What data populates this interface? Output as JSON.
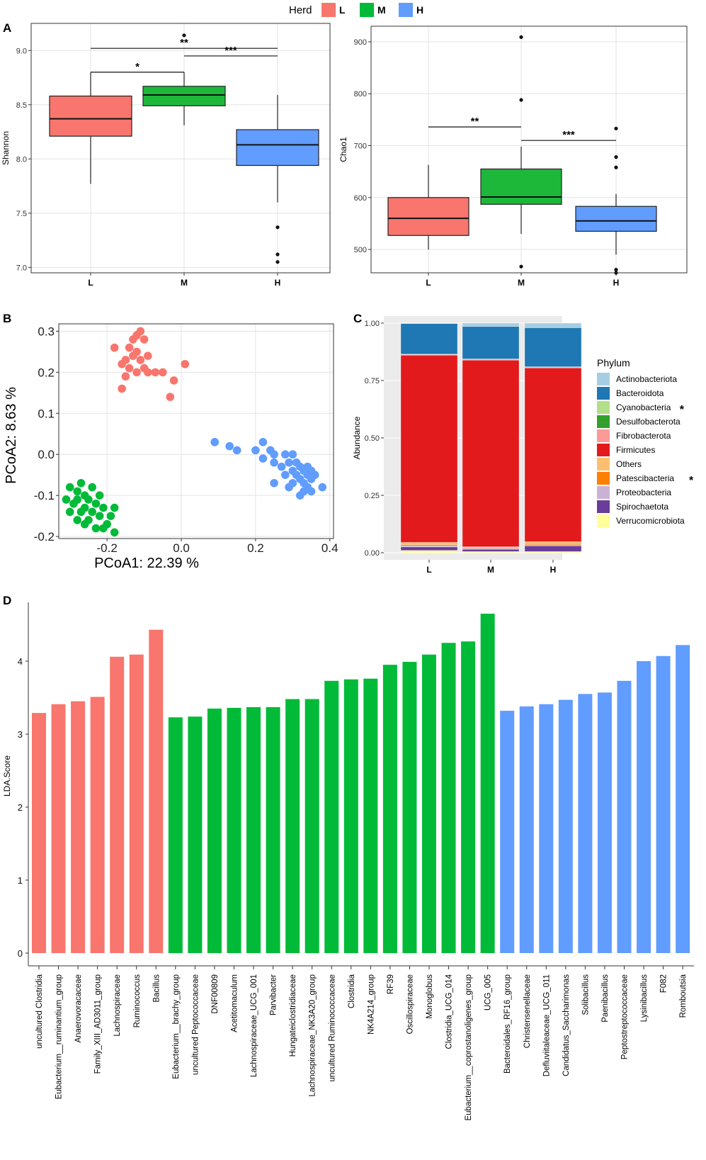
{
  "colors": {
    "L": "#F8766D",
    "M": "#00BA38",
    "H": "#619CFF",
    "box_L": "#F8766D",
    "box_M": "#1DB83A",
    "box_H": "#619CFF"
  },
  "legend": {
    "title": "Herd",
    "items": [
      "L",
      "M",
      "H"
    ]
  },
  "panel_labels": {
    "A": "A",
    "B": "B",
    "C": "C",
    "D": "D"
  },
  "chart_data": [
    {
      "id": "A_shannon",
      "type": "box",
      "ylabel": "Shannon",
      "ylim": [
        6.95,
        9.25
      ],
      "yticks": [
        {
          "v": 7.0,
          "label": "7.0"
        },
        {
          "v": 7.5,
          "label": "7.5"
        },
        {
          "v": 8.0,
          "label": "8.0"
        },
        {
          "v": 8.5,
          "label": "8.5"
        },
        {
          "v": 9.0,
          "label": "9.0"
        }
      ],
      "categories": [
        "L",
        "M",
        "H"
      ],
      "boxes": [
        {
          "group": "L",
          "lower": 7.77,
          "q1": 8.21,
          "median": 8.37,
          "q3": 8.58,
          "upper": 8.8,
          "outliers": []
        },
        {
          "group": "M",
          "lower": 8.31,
          "q1": 8.49,
          "median": 8.59,
          "q3": 8.67,
          "upper": 8.8,
          "outliers": [
            9.14
          ]
        },
        {
          "group": "H",
          "lower": 7.6,
          "q1": 7.94,
          "median": 8.13,
          "q3": 8.27,
          "upper": 8.59,
          "outliers": [
            7.37,
            7.12,
            7.05
          ]
        }
      ],
      "signif": [
        {
          "from": "L",
          "to": "M",
          "y": 8.8,
          "label": "*"
        },
        {
          "from": "L",
          "to": "H",
          "y": 9.02,
          "label": "**"
        },
        {
          "from": "M",
          "to": "H",
          "y": 8.95,
          "label": "***"
        }
      ]
    },
    {
      "id": "A_chao1",
      "type": "box",
      "ylabel": "Chao1",
      "ylim": [
        455,
        930
      ],
      "yticks": [
        {
          "v": 500,
          "label": "500"
        },
        {
          "v": 600,
          "label": "600"
        },
        {
          "v": 700,
          "label": "700"
        },
        {
          "v": 800,
          "label": "800"
        },
        {
          "v": 900,
          "label": "900"
        }
      ],
      "categories": [
        "L",
        "M",
        "H"
      ],
      "boxes": [
        {
          "group": "L",
          "lower": 500,
          "q1": 527,
          "median": 560,
          "q3": 600,
          "upper": 663,
          "outliers": []
        },
        {
          "group": "M",
          "lower": 530,
          "q1": 587,
          "median": 601,
          "q3": 655,
          "upper": 698,
          "outliers": [
            909,
            788,
            467
          ]
        },
        {
          "group": "H",
          "lower": 490,
          "q1": 535,
          "median": 555,
          "q3": 583,
          "upper": 607,
          "outliers": [
            733,
            678,
            658,
            461,
            455
          ]
        }
      ],
      "signif": [
        {
          "from": "L",
          "to": "M",
          "y": 736,
          "label": "**"
        },
        {
          "from": "M",
          "to": "H",
          "y": 710,
          "label": "***"
        }
      ]
    },
    {
      "id": "B_pcoa",
      "type": "scatter",
      "xlabel": "PCoA1:  22.39 %",
      "ylabel": "PCoA2:  8.63 %",
      "xlim": [
        -0.33,
        0.41
      ],
      "ylim": [
        -0.205,
        0.318
      ],
      "xticks": [
        {
          "v": -0.2,
          "label": "-0.2"
        },
        {
          "v": 0.0,
          "label": "0.0"
        },
        {
          "v": 0.2,
          "label": "0.2"
        },
        {
          "v": 0.4,
          "label": "0.4"
        }
      ],
      "yticks": [
        {
          "v": -0.2,
          "label": "-0.2"
        },
        {
          "v": -0.1,
          "label": "-0.1"
        },
        {
          "v": 0.0,
          "label": "0.0"
        },
        {
          "v": 0.1,
          "label": "0.1"
        },
        {
          "v": 0.2,
          "label": "0.2"
        },
        {
          "v": 0.3,
          "label": "0.3"
        }
      ],
      "series": [
        {
          "name": "L",
          "points": [
            [
              -0.12,
              0.29
            ],
            [
              -0.11,
              0.3
            ],
            [
              -0.13,
              0.28
            ],
            [
              -0.1,
              0.28
            ],
            [
              -0.18,
              0.26
            ],
            [
              -0.14,
              0.26
            ],
            [
              -0.12,
              0.25
            ],
            [
              -0.13,
              0.24
            ],
            [
              -0.09,
              0.24
            ],
            [
              -0.11,
              0.23
            ],
            [
              -0.15,
              0.23
            ],
            [
              -0.16,
              0.22
            ],
            [
              -0.14,
              0.21
            ],
            [
              -0.1,
              0.21
            ],
            [
              -0.07,
              0.2
            ],
            [
              -0.12,
              0.2
            ],
            [
              -0.09,
              0.2
            ],
            [
              0.01,
              0.22
            ],
            [
              -0.05,
              0.2
            ],
            [
              -0.15,
              0.19
            ],
            [
              -0.02,
              0.18
            ],
            [
              -0.16,
              0.16
            ],
            [
              -0.03,
              0.14
            ]
          ]
        },
        {
          "name": "M",
          "points": [
            [
              -0.27,
              -0.07
            ],
            [
              -0.3,
              -0.08
            ],
            [
              -0.24,
              -0.08
            ],
            [
              -0.28,
              -0.09
            ],
            [
              -0.26,
              -0.1
            ],
            [
              -0.22,
              -0.1
            ],
            [
              -0.31,
              -0.11
            ],
            [
              -0.28,
              -0.11
            ],
            [
              -0.25,
              -0.11
            ],
            [
              -0.23,
              -0.12
            ],
            [
              -0.29,
              -0.12
            ],
            [
              -0.26,
              -0.13
            ],
            [
              -0.21,
              -0.13
            ],
            [
              -0.18,
              -0.13
            ],
            [
              -0.3,
              -0.14
            ],
            [
              -0.27,
              -0.14
            ],
            [
              -0.24,
              -0.14
            ],
            [
              -0.22,
              -0.15
            ],
            [
              -0.19,
              -0.15
            ],
            [
              -0.28,
              -0.16
            ],
            [
              -0.25,
              -0.16
            ],
            [
              -0.2,
              -0.17
            ],
            [
              -0.26,
              -0.17
            ],
            [
              -0.23,
              -0.18
            ],
            [
              -0.21,
              -0.18
            ],
            [
              -0.18,
              -0.19
            ]
          ]
        },
        {
          "name": "H",
          "points": [
            [
              0.09,
              0.03
            ],
            [
              0.13,
              0.02
            ],
            [
              0.15,
              0.01
            ],
            [
              0.22,
              0.03
            ],
            [
              0.2,
              0.01
            ],
            [
              0.24,
              0.01
            ],
            [
              0.25,
              0.0
            ],
            [
              0.28,
              0.0
            ],
            [
              0.3,
              0.0
            ],
            [
              0.22,
              -0.01
            ],
            [
              0.25,
              -0.02
            ],
            [
              0.29,
              -0.02
            ],
            [
              0.31,
              -0.02
            ],
            [
              0.27,
              -0.03
            ],
            [
              0.32,
              -0.03
            ],
            [
              0.34,
              -0.03
            ],
            [
              0.3,
              -0.04
            ],
            [
              0.33,
              -0.04
            ],
            [
              0.35,
              -0.04
            ],
            [
              0.28,
              -0.05
            ],
            [
              0.31,
              -0.05
            ],
            [
              0.34,
              -0.05
            ],
            [
              0.36,
              -0.05
            ],
            [
              0.32,
              -0.06
            ],
            [
              0.35,
              -0.06
            ],
            [
              0.3,
              -0.07
            ],
            [
              0.33,
              -0.07
            ],
            [
              0.38,
              -0.08
            ],
            [
              0.25,
              -0.07
            ],
            [
              0.29,
              -0.08
            ],
            [
              0.34,
              -0.08
            ],
            [
              0.33,
              -0.09
            ],
            [
              0.35,
              -0.09
            ],
            [
              0.32,
              -0.1
            ]
          ]
        }
      ]
    },
    {
      "id": "C_phylum",
      "type": "stacked_bar",
      "ylabel": "Abundance",
      "ylim": [
        0,
        1
      ],
      "yticks": [
        {
          "v": 0,
          "label": "0.00"
        },
        {
          "v": 0.25,
          "label": "0.25"
        },
        {
          "v": 0.5,
          "label": "0.50"
        },
        {
          "v": 0.75,
          "label": "0.75"
        },
        {
          "v": 1,
          "label": "1.00"
        }
      ],
      "categories": [
        "L",
        "M",
        "H"
      ],
      "legend_title": "Phylum",
      "series": [
        {
          "name": "Verrucomicrobiota",
          "color": "#FFFF99",
          "star": false,
          "values": [
            0.01,
            0.005,
            0.005
          ]
        },
        {
          "name": "Spirochaetota",
          "color": "#6A3D9A",
          "star": false,
          "values": [
            0.015,
            0.01,
            0.025
          ]
        },
        {
          "name": "Proteobacteria",
          "color": "#CAB2D6",
          "star": false,
          "values": [
            0.005,
            0.005,
            0.005
          ]
        },
        {
          "name": "Patescibacteria",
          "color": "#FF7F00",
          "star": true,
          "values": [
            0.005,
            0.002,
            0.005
          ]
        },
        {
          "name": "Others",
          "color": "#FDBF6F",
          "star": false,
          "values": [
            0.01,
            0.004,
            0.008
          ]
        },
        {
          "name": "Firmicutes",
          "color": "#E31A1C",
          "star": false,
          "values": [
            0.815,
            0.813,
            0.757
          ]
        },
        {
          "name": "Fibrobacterota",
          "color": "#FB9A99",
          "star": false,
          "values": [
            0.003,
            0.003,
            0.003
          ]
        },
        {
          "name": "Desulfobacterota",
          "color": "#33A02C",
          "star": false,
          "values": [
            0.001,
            0.001,
            0.001
          ]
        },
        {
          "name": "Cyanobacteria",
          "color": "#B2DF8A",
          "star": true,
          "values": [
            0.001,
            0.001,
            0.001
          ]
        },
        {
          "name": "Bacteroidota",
          "color": "#1F78B4",
          "star": false,
          "values": [
            0.133,
            0.141,
            0.17
          ]
        },
        {
          "name": "Actinobacteriota",
          "color": "#A6CEE3",
          "star": false,
          "values": [
            0.002,
            0.015,
            0.02
          ]
        }
      ]
    },
    {
      "id": "D_lefse",
      "type": "bar",
      "ylabel": "LDA.Score",
      "ylim": [
        0,
        4.9
      ],
      "yticks": [
        {
          "v": 0,
          "label": "0"
        },
        {
          "v": 1,
          "label": "1"
        },
        {
          "v": 2,
          "label": "2"
        },
        {
          "v": 3,
          "label": "3"
        },
        {
          "v": 4,
          "label": "4"
        }
      ],
      "bars": [
        {
          "name": "uncultured Clostridia",
          "group": "L",
          "value": 3.29
        },
        {
          "name": "Eubacterium__ruminantium_group",
          "group": "L",
          "value": 3.41
        },
        {
          "name": "Anaerovoracaceae",
          "group": "L",
          "value": 3.45
        },
        {
          "name": "Family_XIII_AD3011_group",
          "group": "L",
          "value": 3.51
        },
        {
          "name": "Lachnospiraceae",
          "group": "L",
          "value": 4.06
        },
        {
          "name": "Ruminococcus",
          "group": "L",
          "value": 4.09
        },
        {
          "name": "Bacillus",
          "group": "L",
          "value": 4.43
        },
        {
          "name": "Eubacterium__brachy_group",
          "group": "M",
          "value": 3.23
        },
        {
          "name": "uncultured Peptococcaceae",
          "group": "M",
          "value": 3.24
        },
        {
          "name": "DNF00809",
          "group": "M",
          "value": 3.35
        },
        {
          "name": "Acetitomaculum",
          "group": "M",
          "value": 3.36
        },
        {
          "name": "Lachnospiraceae_UCG_001",
          "group": "M",
          "value": 3.37
        },
        {
          "name": "Parvibacter",
          "group": "M",
          "value": 3.37
        },
        {
          "name": "Hungateiclostridiaceae",
          "group": "M",
          "value": 3.48
        },
        {
          "name": "Lachnospiraceae_NK3A20_group",
          "group": "M",
          "value": 3.48
        },
        {
          "name": "uncultured Ruminococcaceae",
          "group": "M",
          "value": 3.73
        },
        {
          "name": "Clostridia",
          "group": "M",
          "value": 3.75
        },
        {
          "name": "NK4A214_group",
          "group": "M",
          "value": 3.76
        },
        {
          "name": "RF39",
          "group": "M",
          "value": 3.95
        },
        {
          "name": "Oscillospiraceae",
          "group": "M",
          "value": 3.99
        },
        {
          "name": "Monoglobus",
          "group": "M",
          "value": 4.09
        },
        {
          "name": "Clostridia_UCG_014",
          "group": "M",
          "value": 4.25
        },
        {
          "name": "Eubacterium__coprostanoligenes_group",
          "group": "M",
          "value": 4.27
        },
        {
          "name": "UCG_005",
          "group": "M",
          "value": 4.65
        },
        {
          "name": "Bacteroidales_RF16_group",
          "group": "H",
          "value": 3.32
        },
        {
          "name": "Christensenellaceae",
          "group": "H",
          "value": 3.38
        },
        {
          "name": "Defluviitaleaceae_UCG_011",
          "group": "H",
          "value": 3.41
        },
        {
          "name": "Candidatus_Saccharimonas",
          "group": "H",
          "value": 3.47
        },
        {
          "name": "Solibacillus",
          "group": "H",
          "value": 3.55
        },
        {
          "name": "Paenibacillus",
          "group": "H",
          "value": 3.57
        },
        {
          "name": "Peptostreptococcaceae",
          "group": "H",
          "value": 3.73
        },
        {
          "name": "Lysinibacillus",
          "group": "H",
          "value": 4.0
        },
        {
          "name": "F082",
          "group": "H",
          "value": 4.07
        },
        {
          "name": "Romboutsia",
          "group": "H",
          "value": 4.22
        }
      ]
    }
  ]
}
